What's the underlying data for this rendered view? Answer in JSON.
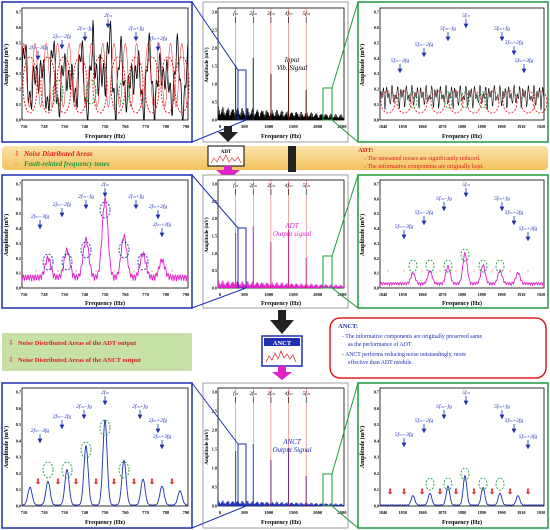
{
  "row1": {
    "left": {
      "ylabel": "Amplitude (mV)",
      "xlabel": "Frequency (Hz)",
      "xticks": [
        "710",
        "720",
        "730",
        "740",
        "750",
        "760",
        "770",
        "780",
        "790"
      ],
      "yticks": [
        "0.0",
        "0.1",
        "0.2",
        "0.3",
        "0.4",
        "0.5",
        "0.6",
        "0.7"
      ],
      "ann": [
        "2f_m",
        "2f_m−f_g",
        "2f_m+f_g",
        "2f_m−2f_g",
        "2f_m+2f_g",
        "2f_m−3f_g",
        "2f_m+3f_g"
      ]
    },
    "mid": {
      "ylabel": "Amplitude (mV)",
      "xlabel": "Frequency (Hz)",
      "title1": "Input",
      "title2": "Vib. Signal",
      "xticks": [
        "0",
        "500",
        "1000",
        "1500",
        "2000",
        "2500"
      ],
      "yticks": [
        "0.0",
        "0.5",
        "1.0",
        "1.5",
        "2.0",
        "2.5",
        "3.0"
      ],
      "harmonics": [
        "f_m",
        "2f_m",
        "3f_m",
        "4f_m",
        "5f_m"
      ]
    },
    "right": {
      "ylabel": "Amplitude (mV)",
      "xlabel": "Frequency (Hz)",
      "xticks": [
        "1840",
        "1850",
        "1860",
        "1870",
        "1880",
        "1890",
        "1900",
        "1910",
        "1920"
      ],
      "yticks": [
        "0.0",
        "0.1",
        "0.2",
        "0.3",
        "0.4",
        "0.5",
        "0.6",
        "0.7"
      ],
      "ann": [
        "5f_m",
        "5f_m−f_g",
        "5f_m+f_g",
        "5f_m−2f_g",
        "5f_m+2f_g",
        "5f_m−3f_g",
        "5f_m+3f_g"
      ]
    }
  },
  "legend1": {
    "item1": "Noise Distributed Areas",
    "item2": "Fault-related frequency tones"
  },
  "adt_box": {
    "title": "ADT:",
    "line1": "The unwanted noises are significantly reduced.",
    "line2": "The informative components are originally kept.",
    "label": "ADT"
  },
  "row2": {
    "mid": {
      "title1": "ADT",
      "title2": "Output signal"
    }
  },
  "legend2": {
    "item1": "Noise Distributed Areas of the ADT output",
    "item2": "Noise Distributed Areas of the ANCT output"
  },
  "anct_box": {
    "label": "ANCT",
    "title": "ANCT:",
    "line1": "The informative components are originally preserved same",
    "line1b": "as the performance of ADT",
    "line2": "ANCT performs reducing noise outstandingly, more",
    "line2b": "effective than ADT module."
  },
  "row3": {
    "mid": {
      "title1": "ANCT",
      "title2": "Output Signal"
    }
  },
  "colors": {
    "blue": "#1f2fb0",
    "green": "#1e9a3a",
    "magenta": "#e020c8",
    "red": "#e02020",
    "band": "#f5c76a"
  }
}
